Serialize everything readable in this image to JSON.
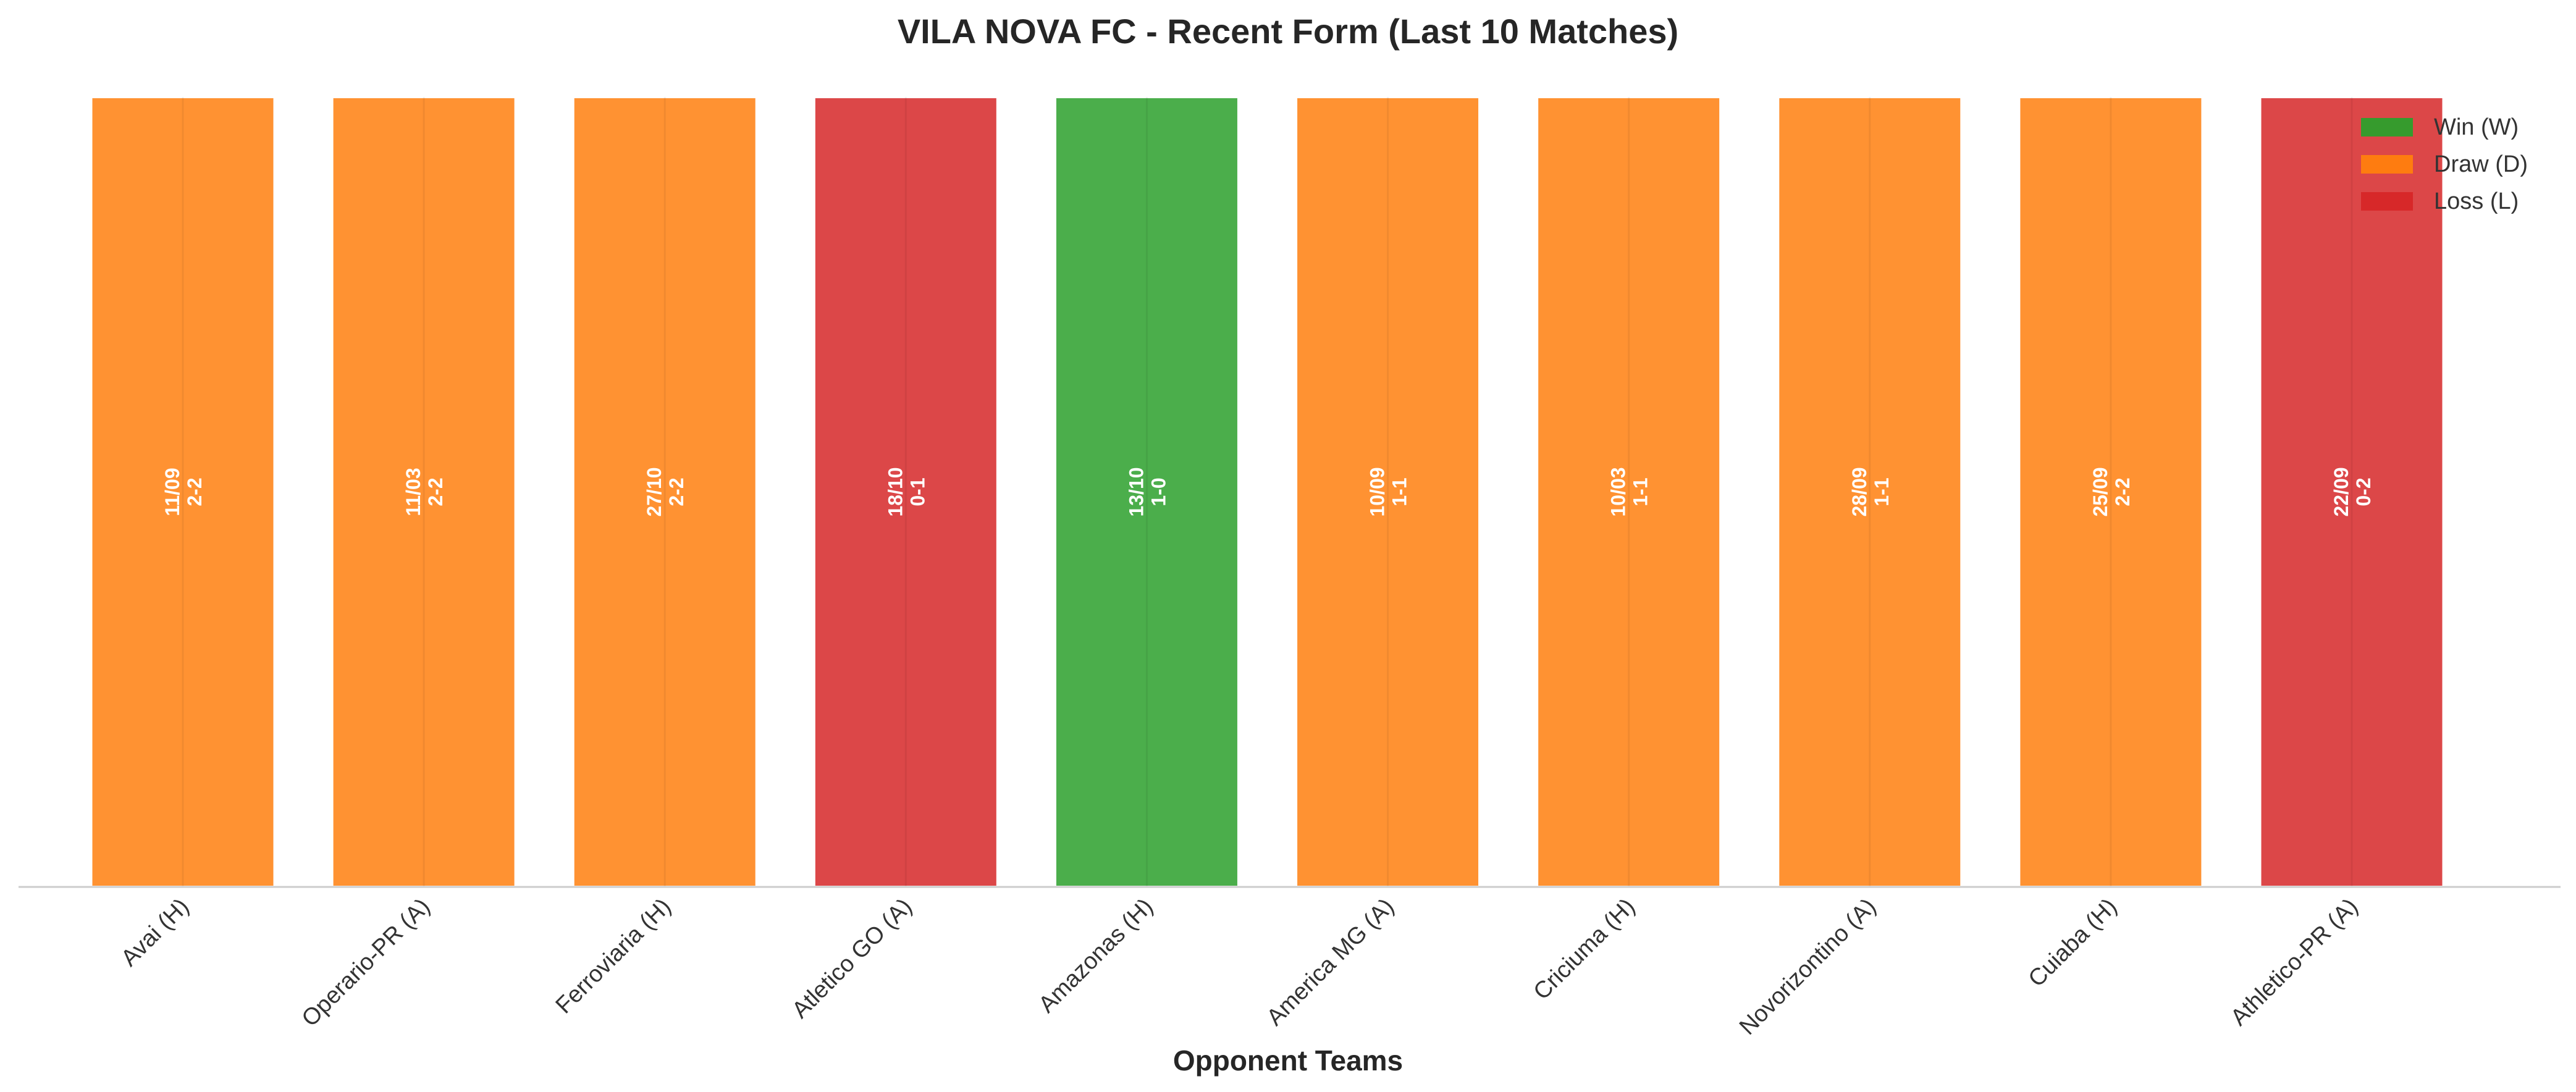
{
  "chart_data": {
    "type": "bar",
    "title": "VILA NOVA FC - Recent Form (Last 10 Matches)",
    "xlabel": "Opponent Teams",
    "ylabel": "",
    "ylim": [
      0,
      1
    ],
    "grid": false,
    "legend_position": "top-right",
    "categories": [
      "Avai (H)",
      "Operario-PR (A)",
      "Ferroviaria (H)",
      "Atletico GO (A)",
      "Amazonas (H)",
      "America MG (A)",
      "Criciuma (H)",
      "Novorizontino (A)",
      "Cuiaba (H)",
      "Athletico-PR (A)"
    ],
    "values": [
      1,
      1,
      1,
      1,
      1,
      1,
      1,
      1,
      1,
      1
    ],
    "results": [
      "D",
      "D",
      "D",
      "L",
      "W",
      "D",
      "D",
      "D",
      "D",
      "L"
    ],
    "dates": [
      "11/09",
      "11/03",
      "27/10",
      "18/10",
      "13/10",
      "10/09",
      "10/03",
      "28/09",
      "25/09",
      "22/09"
    ],
    "scores": [
      "2-2",
      "2-2",
      "2-2",
      "0-1",
      "1-0",
      "1-1",
      "1-1",
      "1-1",
      "2-2",
      "0-2"
    ],
    "legend": [
      {
        "key": "W",
        "label": "Win (W)",
        "color": "#2ca02c"
      },
      {
        "key": "D",
        "label": "Draw (D)",
        "color": "#ff7f0e"
      },
      {
        "key": "L",
        "label": "Loss (L)",
        "color": "#d62728"
      }
    ],
    "colors": {
      "W": "#2ca02c",
      "D": "#ff7f0e",
      "L": "#d62728"
    }
  }
}
